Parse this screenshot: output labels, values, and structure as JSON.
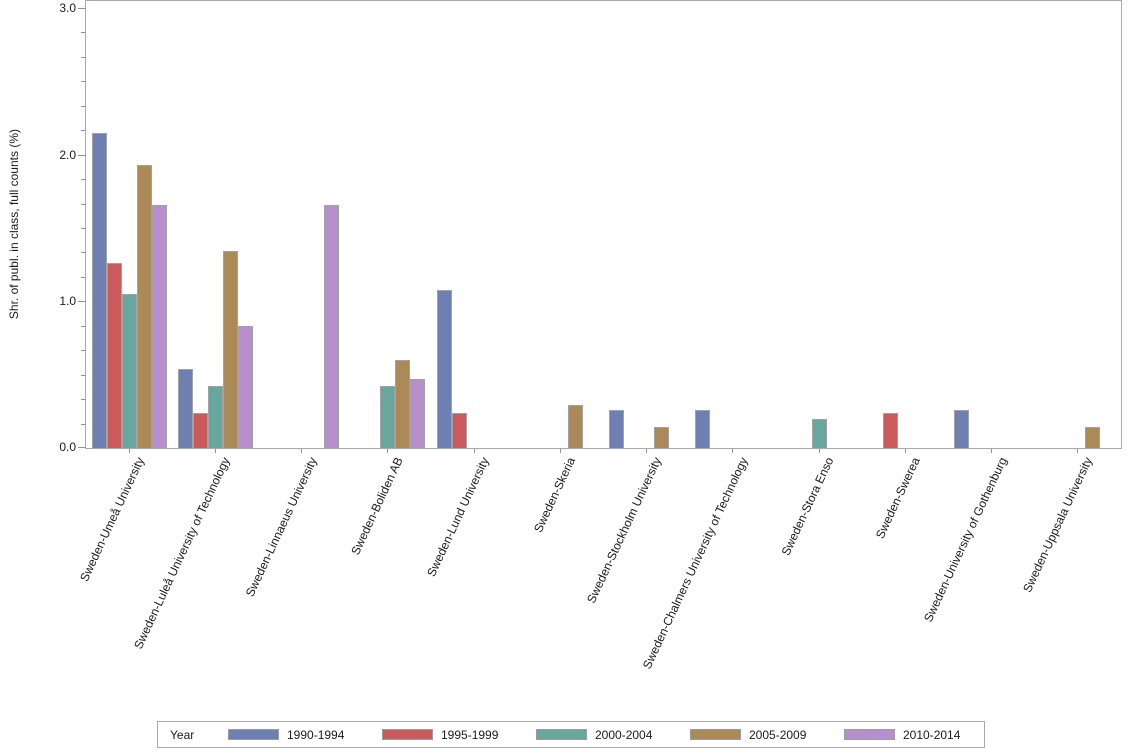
{
  "chart_data": {
    "type": "bar",
    "title": "",
    "xlabel": "",
    "ylabel": "Shr. of publ. in class, full counts (%)",
    "ylim": [
      0,
      3.0
    ],
    "ytick_labels": [
      "0.0",
      "1.0",
      "2.0",
      "3.0"
    ],
    "minor_ticks_between_majors": 5,
    "grid": false,
    "legend_title": "Year",
    "legend_position": "bottom",
    "categories": [
      "Sweden-Umeå University",
      "Sweden-Luleå University of Technology",
      "Sweden-Linnaeus University",
      "Sweden-Boliden AB",
      "Sweden-Lund University",
      "Sweden-Skeria",
      "Sweden-Stockholm University",
      "Sweden-Chalmers University of Technology",
      "Sweden-Stora Enso",
      "Sweden-Swerea",
      "Sweden-University of Gothenburg",
      "Sweden-Uppsala University"
    ],
    "series": [
      {
        "name": "1990-1994",
        "color": "#6e7fb2",
        "values": [
          2.15,
          0.54,
          null,
          null,
          1.08,
          null,
          0.26,
          0.26,
          null,
          null,
          0.26,
          null
        ]
      },
      {
        "name": "1995-1999",
        "color": "#cb5a5c",
        "values": [
          1.26,
          0.24,
          null,
          null,
          0.24,
          null,
          null,
          null,
          null,
          0.24,
          null,
          null
        ]
      },
      {
        "name": "2000-2004",
        "color": "#68a79e",
        "values": [
          1.05,
          0.42,
          null,
          0.42,
          null,
          null,
          null,
          null,
          0.2,
          null,
          null,
          null
        ]
      },
      {
        "name": "2005-2009",
        "color": "#ac8a58",
        "values": [
          1.93,
          1.34,
          null,
          0.6,
          null,
          0.29,
          0.14,
          null,
          null,
          null,
          null,
          0.14
        ]
      },
      {
        "name": "2010-2014",
        "color": "#b88fcd",
        "values": [
          1.66,
          0.83,
          1.66,
          0.47,
          null,
          null,
          null,
          null,
          null,
          null,
          null,
          null
        ]
      }
    ],
    "colors": {
      "axis_border": "#a6acb2",
      "tick": "#8c9298",
      "bar_outline": "#a1a1a6",
      "text": "#1a1a1a"
    }
  }
}
